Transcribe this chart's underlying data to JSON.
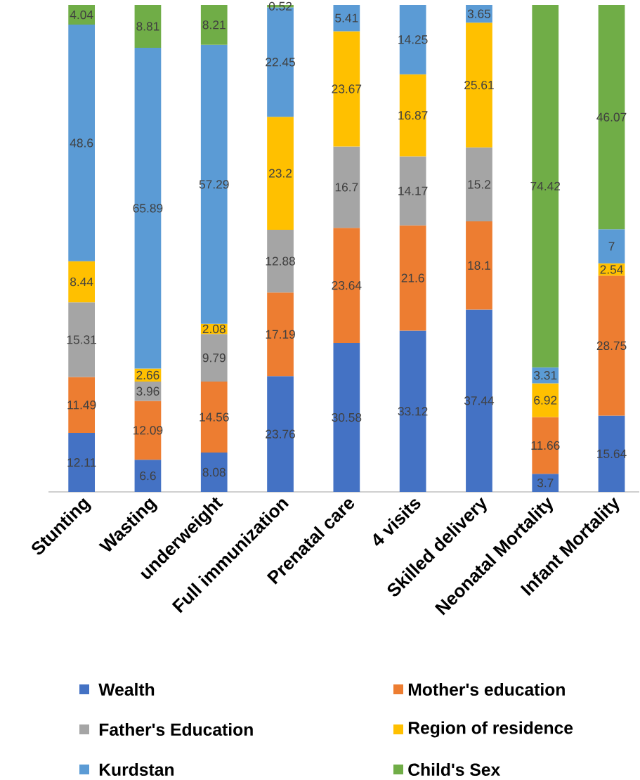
{
  "chart_data": {
    "type": "bar",
    "stacked": true,
    "data_labels": true,
    "legend": "bottom",
    "tick_labels": "x",
    "ylim": [
      0,
      100
    ],
    "categories": [
      "Stunting",
      "Wasting",
      "underweight",
      "Full immunization",
      "Prenatal care",
      "4 visits",
      "Skilled delivery",
      "Neonatal Mortality",
      "Infant Mortality"
    ],
    "series": [
      {
        "name": "Wealth",
        "color": "#4472c4",
        "values": [
          12.11,
          6.6,
          8.08,
          23.76,
          30.58,
          33.12,
          37.44,
          3.7,
          15.64
        ]
      },
      {
        "name": "Mother's education",
        "color": "#ed7d31",
        "values": [
          11.49,
          12.09,
          14.56,
          17.19,
          23.64,
          21.6,
          18.1,
          11.66,
          28.75
        ]
      },
      {
        "name": "Father's Education",
        "color": "#a5a5a5",
        "values": [
          15.31,
          3.96,
          9.79,
          12.88,
          16.7,
          14.17,
          15.2,
          null,
          null
        ]
      },
      {
        "name": "Region of residence",
        "color": "#ffc000",
        "values": [
          8.44,
          2.66,
          2.08,
          23.2,
          23.67,
          16.87,
          25.61,
          6.92,
          2.54
        ]
      },
      {
        "name": "Kurdstan",
        "color": "#5b9bd5",
        "values": [
          48.6,
          65.89,
          57.29,
          22.45,
          5.41,
          14.25,
          3.65,
          3.31,
          7
        ]
      },
      {
        "name": "Child's Sex",
        "color": "#70ad47",
        "values": [
          4.04,
          8.81,
          8.21,
          0.52,
          null,
          null,
          null,
          74.42,
          46.07
        ]
      }
    ]
  }
}
